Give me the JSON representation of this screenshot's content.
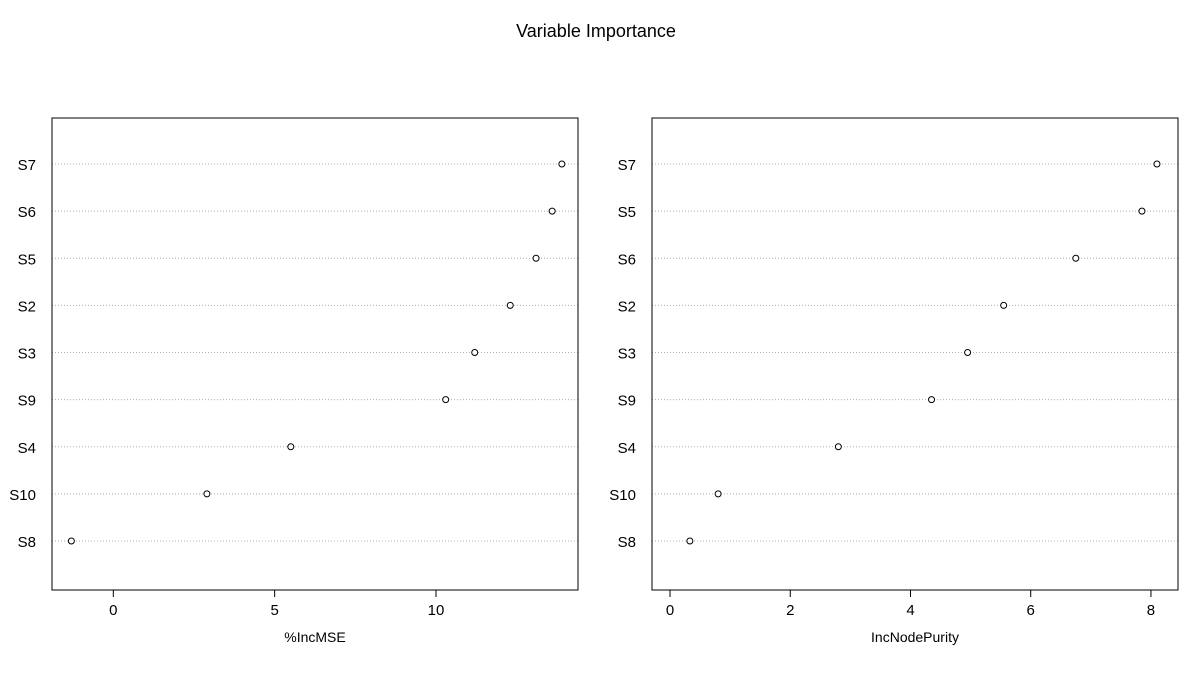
{
  "figure": {
    "title": "Variable Importance"
  },
  "chart_data": [
    {
      "type": "scatter",
      "subtype": "dotchart",
      "xlabel": "%IncMSE",
      "ylabel": "",
      "xlim": [
        -1.9,
        14.4
      ],
      "xticks": [
        0,
        5,
        10
      ],
      "grid": "horizontal-dotted",
      "categories": [
        "S7",
        "S6",
        "S5",
        "S2",
        "S3",
        "S9",
        "S4",
        "S10",
        "S8"
      ],
      "values": [
        13.9,
        13.6,
        13.1,
        12.3,
        11.2,
        10.3,
        5.5,
        2.9,
        -1.3
      ],
      "tick_labels": [
        "0",
        "5",
        "10"
      ]
    },
    {
      "type": "scatter",
      "subtype": "dotchart",
      "xlabel": "IncNodePurity",
      "ylabel": "",
      "xlim": [
        -0.3,
        8.45
      ],
      "xticks": [
        0,
        2,
        4,
        6,
        8
      ],
      "grid": "horizontal-dotted",
      "categories": [
        "S7",
        "S5",
        "S6",
        "S2",
        "S3",
        "S9",
        "S4",
        "S10",
        "S8"
      ],
      "values": [
        8.1,
        7.85,
        6.75,
        5.55,
        4.95,
        4.35,
        2.8,
        0.8,
        0.33
      ],
      "tick_labels": [
        "0",
        "2",
        "4",
        "6",
        "8"
      ]
    }
  ]
}
